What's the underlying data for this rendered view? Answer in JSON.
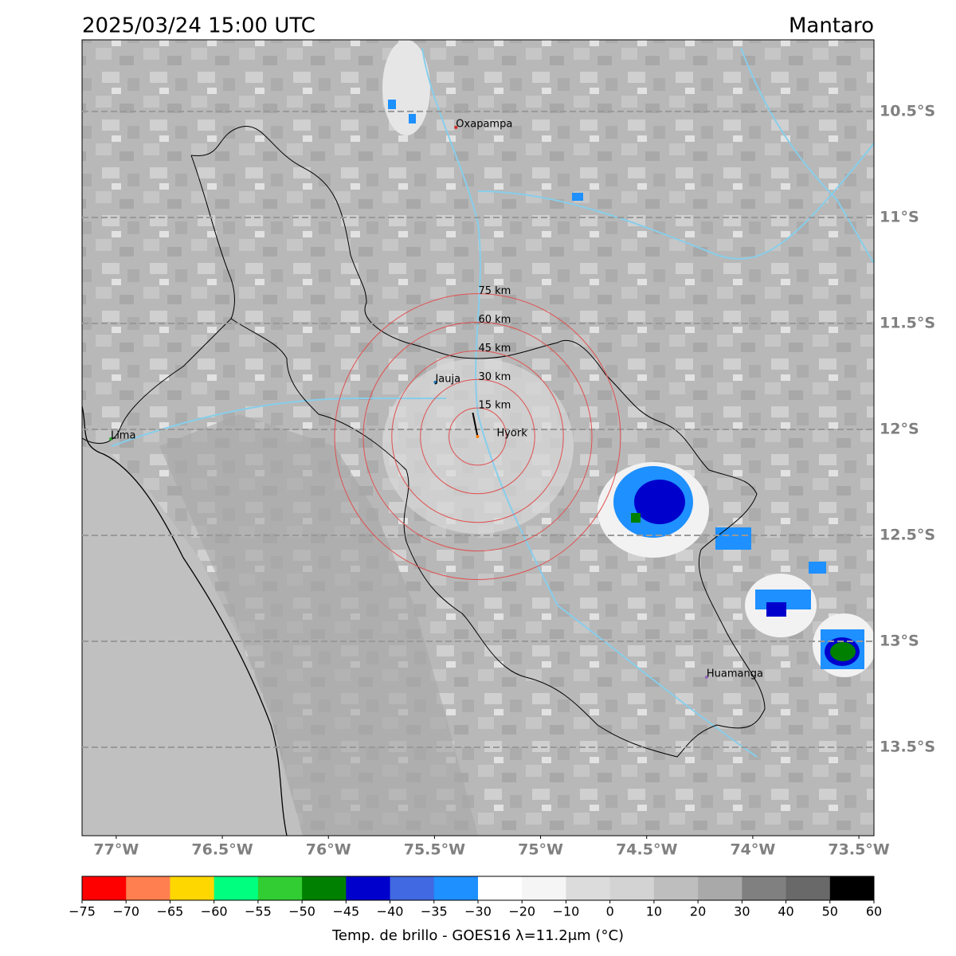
{
  "header": {
    "title": "2025/03/24 15:00 UTC",
    "region": "Mantaro"
  },
  "map": {
    "lon_lim": [
      -77.161,
      -73.429
    ],
    "lat_lim": [
      -13.917,
      -10.162
    ],
    "lon_ticks": [
      {
        "value": -77,
        "label": "77°W"
      },
      {
        "value": -76.5,
        "label": "76.5°W"
      },
      {
        "value": -76,
        "label": "76°W"
      },
      {
        "value": -75.5,
        "label": "75.5°W"
      },
      {
        "value": -75,
        "label": "75°W"
      },
      {
        "value": -74.5,
        "label": "74.5°W"
      },
      {
        "value": -74,
        "label": "74°W"
      },
      {
        "value": -73.5,
        "label": "73.5°W"
      }
    ],
    "lat_ticks": [
      {
        "value": -10.5,
        "label": "10.5°S"
      },
      {
        "value": -11,
        "label": "11°S"
      },
      {
        "value": -11.5,
        "label": "11.5°S"
      },
      {
        "value": -12,
        "label": "12°S"
      },
      {
        "value": -12.5,
        "label": "12.5°S"
      },
      {
        "value": -13,
        "label": "13°S"
      },
      {
        "value": -13.5,
        "label": "13.5°S"
      }
    ],
    "ring_center": {
      "lon": -75.297,
      "lat": -12.034
    },
    "rings": [
      {
        "radius_km": 15,
        "label": "15 km"
      },
      {
        "radius_km": 30,
        "label": "30 km"
      },
      {
        "radius_km": 45,
        "label": "45 km"
      },
      {
        "radius_km": 60,
        "label": "60 km"
      },
      {
        "radius_km": 75,
        "label": "75 km"
      }
    ],
    "places": [
      {
        "name": "Oxapampa",
        "lon": -75.399,
        "lat": -10.575,
        "color": "#d62728"
      },
      {
        "name": "Jauja",
        "lon": -75.496,
        "lat": -11.778,
        "color": "#1f77b4"
      },
      {
        "name": "Lima",
        "lon": -77.026,
        "lat": -12.045,
        "color": "#2ca02c"
      },
      {
        "name": "Huamanga",
        "lon": -74.218,
        "lat": -13.169,
        "color": "#9467bd"
      },
      {
        "name": "Hyork",
        "lon": -75.297,
        "lat": -12.034,
        "color": "#ff7f0e"
      }
    ]
  },
  "colorbar": {
    "label": "Temp. de brillo - GOES16 λ=11.2μm (°C)",
    "ticks": [
      {
        "value": -75,
        "label": "−75"
      },
      {
        "value": -70,
        "label": "−70"
      },
      {
        "value": -65,
        "label": "−65"
      },
      {
        "value": -60,
        "label": "−60"
      },
      {
        "value": -55,
        "label": "−55"
      },
      {
        "value": -50,
        "label": "−50"
      },
      {
        "value": -45,
        "label": "−45"
      },
      {
        "value": -40,
        "label": "−40"
      },
      {
        "value": -35,
        "label": "−35"
      },
      {
        "value": -30,
        "label": "−30"
      },
      {
        "value": -20,
        "label": "−20"
      },
      {
        "value": -10,
        "label": "−10"
      },
      0,
      10,
      20,
      30,
      40,
      50,
      60
    ],
    "colors": [
      "#ff0000",
      "#ff7f50",
      "#ffd700",
      "#00ff7f",
      "#32cd32",
      "#008000",
      "#0000cd",
      "#4169e1",
      "#1e90ff",
      "#ffffff",
      "#f5f5f5",
      "#dcdcdc",
      "#d3d3d3",
      "#bebebe",
      "#a9a9a9",
      "#808080",
      "#696969",
      "#000000"
    ]
  }
}
